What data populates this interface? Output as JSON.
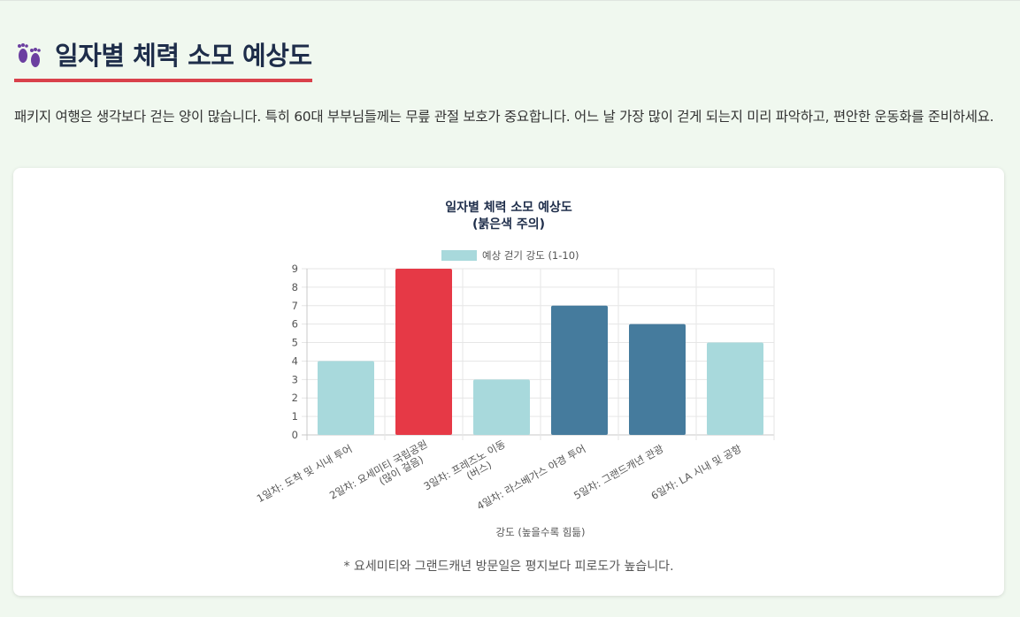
{
  "section": {
    "title": "일자별 체력 소모 예상도",
    "description": "패키지 여행은 생각보다 걷는 양이 많습니다. 특히 60대 부부님들께는 무릎 관절 보호가 중요합니다. 어느 날 가장 많이 걷게 되는지 미리 파악하고, 편안한 운동화를 준비하세요.",
    "icon": "footprints-icon",
    "icon_color": "#6b3fa0",
    "underline_color": "#d9414b"
  },
  "chart_data": {
    "type": "bar",
    "title_lines": [
      "일자별 체력 소모 예상도",
      "(붉은색 주의)"
    ],
    "legend": {
      "label": "예상 걷기 강도 (1-10)",
      "color": "#a8d9dc",
      "position": "top"
    },
    "categories": [
      [
        "1일차: 도착 및 시내 투어"
      ],
      [
        "2일차: 요세미티 국립공원",
        "(많이 걸음)"
      ],
      [
        "3일차: 프레즈노 이동",
        "(버스)"
      ],
      [
        "4일차: 라스베가스 야경 투어"
      ],
      [
        "5일차: 그랜드캐년 관광"
      ],
      [
        "6일차: LA 시내 및 공항"
      ]
    ],
    "values": [
      4,
      9,
      3,
      7,
      6,
      5
    ],
    "bar_colors": [
      "#a8d9dc",
      "#e63946",
      "#a8d9dc",
      "#457b9d",
      "#457b9d",
      "#a8d9dc"
    ],
    "xlabel": "강도 (높을수록 힘듦)",
    "ylim": [
      0,
      9
    ],
    "yticks": [
      "0",
      "1",
      "2",
      "3",
      "4",
      "5",
      "6",
      "7",
      "8",
      "9"
    ],
    "grid": true
  },
  "footnote": "* 요세미티와 그랜드캐년 방문일은 평지보다 피로도가 높습니다."
}
